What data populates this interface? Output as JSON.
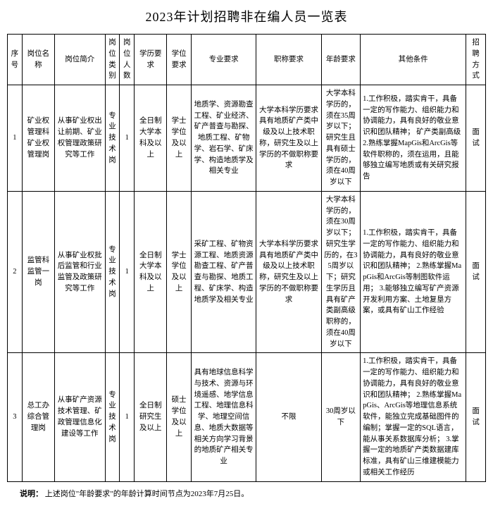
{
  "title": "2023年计划招聘非在编人员一览表",
  "headers": {
    "seq": "序号",
    "name": "岗位名称",
    "intro": "岗位简介",
    "category": "岗位类别",
    "count": "岗位人数",
    "edu": "学历要求",
    "degree": "学位要求",
    "major": "专业要求",
    "titleReq": "职称要求",
    "age": "年龄要求",
    "other": "其他条件",
    "method": "招聘方式"
  },
  "rows": [
    {
      "seq": "1",
      "name": "矿业权管理科 矿业权管理岗",
      "intro": "从事矿业权出让前期、矿业权管理政策研究等工作",
      "category": "专业技术岗",
      "count": "1",
      "edu": "全日制大学本科及以上",
      "degree": "学士学位及以上",
      "major": "地质学、资源勘查工程、矿业经济、矿产普查与勘探、地质工程、矿物学、岩石学、矿床学、构造地质学及相关专业",
      "titleReq": "大学本科学历要求具有地质矿产类中级及以上技术职称，研究生及以上学历的不做职称要求",
      "age": "大学本科学历的，须在35周岁以下；研究生且具有硕士学历的，须在40周岁以下",
      "other": "1.工作积极，踏实肯干，具备一定的写作能力、组织能力和协调能力，具有良好的敬业意识和团队精神；\n矿产类副高级2.熟练掌握MapGis和ArcGis等软件职称的，须在运用，且能够独立编写地质或有关研究报告",
      "method": "面试"
    },
    {
      "seq": "2",
      "name": "监管科 监管一岗",
      "intro": "从事矿业权批后监管和行业监管及政策研究等工作",
      "category": "专业技术岗",
      "count": "1",
      "edu": "全日制大学本科及以上",
      "degree": "学士学位及以上",
      "major": "采矿工程、矿物资源工程、地质资源勘查工程、矿产普查与勘探、地质工程、矿床学、构造地质学及相关专业",
      "titleReq": "大学本科学历要求具有地质矿产类中级及以上技术职称，研究生及以上学历的不做职称要求",
      "age": "大学本科学历的，须在30周岁以下；研究生学历的，在35周岁以下；研究生学历且具有矿产类副高级职称的，须在40周岁以下",
      "other": "1.工作积极，踏实肯干，具备一定的写作能力、组织能力和协调能力，具有良好的敬业意识和团队精神；\n2.熟练掌握MapGis和ArcGis等制图软件运用；\n3.能够独立编写矿产资源开发利用方案、土地复垦方案，或具有矿山工作经验",
      "method": "面试"
    },
    {
      "seq": "3",
      "name": "总工办 综合管理岗",
      "intro": "从事矿产资源技术管理、矿政管理信息化建设等工作",
      "category": "专业技术岗",
      "count": "1",
      "edu": "全日制研究生及以上",
      "degree": "硕士学位及以上",
      "major": "具有地球信息科学与技术、资源与环境遥感、地学信息工程、地理信息科学、地理空间信息、地质大数据等相关方向学习背景的地质矿产相关专业",
      "titleReq": "不限",
      "age": "30周岁以下",
      "other": "1.工作积极，踏实肯干，具备一定的写作能力、组织能力和协调能力，具有良好的敬业意识和团队精神；\n2.熟练掌握MapGis、ArcGis等地理信息系统软件，能独立完成基础图件的编制；掌握一定的SQL语言，能从事关系数据库分析；\n3.掌握一定的地质矿产类数据建库标准，具有矿山三维建模能力或相关工作经历",
      "method": "面试"
    }
  ],
  "note": {
    "label": "说明：",
    "text": "上述岗位\"年龄要求\"的年龄计算时间节点为2023年7月25日。"
  }
}
